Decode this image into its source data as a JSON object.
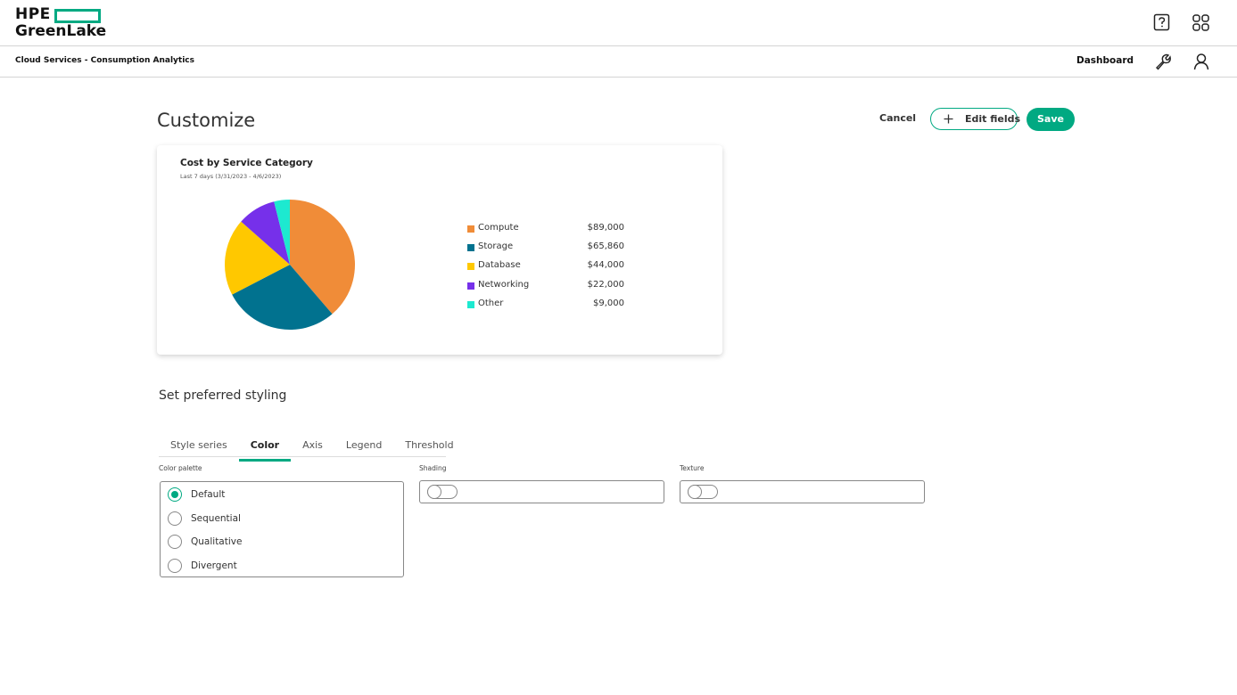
{
  "header": {
    "logo_top": "HPE",
    "logo_bottom": "GreenLake"
  },
  "subnav": {
    "title": "Cloud Services - Consumption Analytics",
    "link": "Dashboard"
  },
  "page": {
    "title": "Customize",
    "cancel": "Cancel",
    "edit_fields": "Edit fields",
    "save": "Save"
  },
  "chart_data": {
    "type": "pie",
    "title": "Cost by Service Category",
    "subtitle": "Last 7 days (3/31/2023 - 4/6/2023)",
    "categories": [
      "Compute",
      "Storage",
      "Database",
      "Networking",
      "Other"
    ],
    "values": [
      89000,
      65860,
      44000,
      22000,
      9000
    ],
    "value_labels": [
      "$89,000",
      "$65,860",
      "$44,000",
      "$22,000",
      "$9,000"
    ],
    "colors": [
      "#f08c38",
      "#01728f",
      "#ffc800",
      "#7630ea",
      "#1de9d0"
    ]
  },
  "styling": {
    "title": "Set preferred styling",
    "tabs": [
      "Style series",
      "Color",
      "Axis",
      "Legend",
      "Threshold"
    ],
    "color_palette": {
      "label": "Color palette",
      "options": [
        "Default",
        "Sequential",
        "Qualitative",
        "Divergent"
      ]
    },
    "shading": {
      "label": "Shading"
    },
    "texture": {
      "label": "Texture"
    }
  }
}
